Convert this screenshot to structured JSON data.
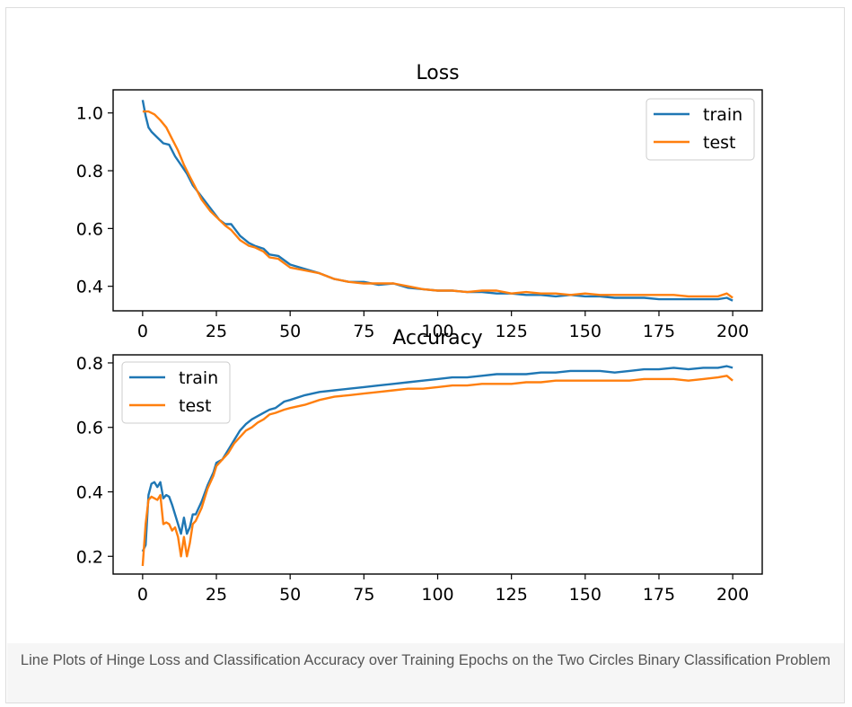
{
  "caption": "Line Plots of Hinge Loss and Classification Accuracy over Training Epochs on the Two Circles Binary Classification Problem",
  "colors": {
    "train": "#1f77b4",
    "test": "#ff7f0e"
  },
  "chart_data": [
    {
      "type": "line",
      "title": "Loss",
      "xlabel": "",
      "ylabel": "",
      "xlim": [
        -10,
        210
      ],
      "ylim": [
        0.315,
        1.08
      ],
      "xticks": [
        0,
        25,
        50,
        75,
        100,
        125,
        150,
        175,
        200
      ],
      "yticks": [
        0.4,
        0.6,
        0.8,
        1.0
      ],
      "ytick_labels": [
        "0.4",
        "0.6",
        "0.8",
        "1.0"
      ],
      "grid": false,
      "legend": "upper-right",
      "series": [
        {
          "name": "train",
          "color": "#1f77b4",
          "x": [
            0,
            1,
            2,
            3,
            5,
            7,
            9,
            11,
            13,
            15,
            17,
            20,
            23,
            26,
            28,
            30,
            33,
            36,
            38,
            41,
            43,
            46,
            50,
            55,
            60,
            65,
            70,
            75,
            80,
            85,
            90,
            95,
            100,
            105,
            110,
            115,
            120,
            125,
            130,
            135,
            140,
            145,
            150,
            155,
            160,
            165,
            170,
            175,
            180,
            185,
            190,
            195,
            198,
            200
          ],
          "y": [
            1.045,
            0.99,
            0.95,
            0.935,
            0.915,
            0.895,
            0.89,
            0.85,
            0.82,
            0.79,
            0.75,
            0.71,
            0.67,
            0.63,
            0.615,
            0.615,
            0.575,
            0.55,
            0.54,
            0.53,
            0.51,
            0.505,
            0.475,
            0.46,
            0.445,
            0.425,
            0.415,
            0.415,
            0.405,
            0.41,
            0.395,
            0.39,
            0.385,
            0.385,
            0.38,
            0.38,
            0.375,
            0.375,
            0.37,
            0.37,
            0.365,
            0.37,
            0.365,
            0.365,
            0.36,
            0.36,
            0.36,
            0.355,
            0.355,
            0.355,
            0.355,
            0.355,
            0.36,
            0.35
          ]
        },
        {
          "name": "test",
          "color": "#ff7f0e",
          "x": [
            0,
            2,
            4,
            6,
            8,
            10,
            12,
            14,
            16,
            18,
            20,
            23,
            26,
            28,
            30,
            33,
            36,
            38,
            41,
            43,
            46,
            50,
            55,
            60,
            65,
            70,
            75,
            80,
            85,
            90,
            95,
            100,
            105,
            110,
            115,
            120,
            125,
            130,
            135,
            140,
            145,
            150,
            155,
            160,
            165,
            170,
            175,
            180,
            185,
            190,
            195,
            198,
            200
          ],
          "y": [
            1.005,
            1.005,
            0.995,
            0.975,
            0.95,
            0.91,
            0.87,
            0.82,
            0.78,
            0.74,
            0.7,
            0.66,
            0.63,
            0.61,
            0.595,
            0.56,
            0.54,
            0.535,
            0.52,
            0.5,
            0.495,
            0.465,
            0.455,
            0.445,
            0.425,
            0.415,
            0.41,
            0.41,
            0.41,
            0.4,
            0.39,
            0.385,
            0.385,
            0.38,
            0.385,
            0.385,
            0.375,
            0.38,
            0.375,
            0.375,
            0.37,
            0.375,
            0.37,
            0.37,
            0.37,
            0.37,
            0.37,
            0.37,
            0.365,
            0.365,
            0.365,
            0.375,
            0.36
          ]
        }
      ]
    },
    {
      "type": "line",
      "title": "Accuracy",
      "xlabel": "",
      "ylabel": "",
      "xlim": [
        -10,
        210
      ],
      "ylim": [
        0.145,
        0.825
      ],
      "xticks": [
        0,
        25,
        50,
        75,
        100,
        125,
        150,
        175,
        200
      ],
      "yticks": [
        0.2,
        0.4,
        0.6,
        0.8
      ],
      "ytick_labels": [
        "0.2",
        "0.4",
        "0.6",
        "0.8"
      ],
      "grid": false,
      "legend": "upper-left",
      "series": [
        {
          "name": "train",
          "color": "#1f77b4",
          "x": [
            0,
            1,
            2,
            3,
            4,
            5,
            6,
            7,
            8,
            9,
            10,
            11,
            12,
            13,
            14,
            15,
            16,
            17,
            18,
            20,
            22,
            24,
            25,
            27,
            29,
            31,
            33,
            35,
            37,
            39,
            41,
            43,
            45,
            48,
            50,
            55,
            60,
            65,
            70,
            75,
            80,
            85,
            90,
            95,
            100,
            105,
            110,
            115,
            120,
            125,
            130,
            135,
            140,
            145,
            150,
            155,
            160,
            165,
            170,
            175,
            180,
            185,
            190,
            195,
            198,
            200
          ],
          "y": [
            0.215,
            0.235,
            0.39,
            0.425,
            0.43,
            0.415,
            0.43,
            0.38,
            0.39,
            0.385,
            0.36,
            0.33,
            0.3,
            0.27,
            0.32,
            0.27,
            0.29,
            0.33,
            0.33,
            0.37,
            0.42,
            0.46,
            0.49,
            0.5,
            0.53,
            0.56,
            0.59,
            0.61,
            0.625,
            0.635,
            0.645,
            0.655,
            0.66,
            0.68,
            0.685,
            0.7,
            0.71,
            0.715,
            0.72,
            0.725,
            0.73,
            0.735,
            0.74,
            0.745,
            0.75,
            0.755,
            0.755,
            0.76,
            0.765,
            0.765,
            0.765,
            0.77,
            0.77,
            0.775,
            0.775,
            0.775,
            0.77,
            0.775,
            0.78,
            0.78,
            0.785,
            0.78,
            0.785,
            0.785,
            0.79,
            0.785
          ]
        },
        {
          "name": "test",
          "color": "#ff7f0e",
          "x": [
            0,
            1,
            2,
            3,
            4,
            5,
            6,
            7,
            8,
            9,
            10,
            11,
            12,
            13,
            14,
            15,
            16,
            17,
            18,
            20,
            22,
            24,
            25,
            27,
            29,
            31,
            33,
            35,
            37,
            39,
            41,
            43,
            45,
            48,
            50,
            55,
            60,
            65,
            70,
            75,
            80,
            85,
            90,
            95,
            100,
            105,
            110,
            115,
            120,
            125,
            130,
            135,
            140,
            145,
            150,
            155,
            160,
            165,
            170,
            175,
            180,
            185,
            190,
            195,
            198,
            200
          ],
          "y": [
            0.17,
            0.3,
            0.375,
            0.385,
            0.38,
            0.375,
            0.39,
            0.3,
            0.305,
            0.3,
            0.28,
            0.29,
            0.26,
            0.2,
            0.26,
            0.2,
            0.24,
            0.3,
            0.31,
            0.35,
            0.41,
            0.45,
            0.48,
            0.5,
            0.52,
            0.55,
            0.57,
            0.59,
            0.6,
            0.615,
            0.625,
            0.64,
            0.645,
            0.655,
            0.66,
            0.67,
            0.685,
            0.695,
            0.7,
            0.705,
            0.71,
            0.715,
            0.72,
            0.72,
            0.725,
            0.73,
            0.73,
            0.735,
            0.735,
            0.735,
            0.74,
            0.74,
            0.745,
            0.745,
            0.745,
            0.745,
            0.745,
            0.745,
            0.75,
            0.75,
            0.75,
            0.745,
            0.75,
            0.755,
            0.76,
            0.745
          ]
        }
      ]
    }
  ]
}
